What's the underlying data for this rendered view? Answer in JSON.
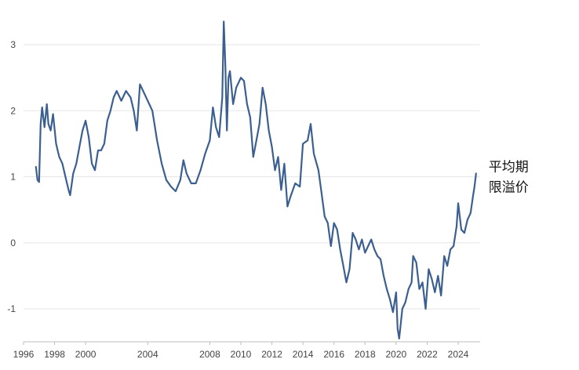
{
  "chart_data": {
    "type": "line",
    "title": "",
    "xlabel": "",
    "ylabel": "",
    "xlim": [
      1996,
      2025.2
    ],
    "ylim": [
      -1.5,
      3.5
    ],
    "grid": true,
    "x_ticks": [
      {
        "value": 1996,
        "label": "1996"
      },
      {
        "value": 1998,
        "label": "1998"
      },
      {
        "value": 2000,
        "label": "2000"
      },
      {
        "value": 2004,
        "label": "2004"
      },
      {
        "value": 2008,
        "label": "2008"
      },
      {
        "value": 2010,
        "label": "2010"
      },
      {
        "value": 2012,
        "label": "2012"
      },
      {
        "value": 2014,
        "label": "2014"
      },
      {
        "value": 2016,
        "label": "2016"
      },
      {
        "value": 2018,
        "label": "2018"
      },
      {
        "value": 2020,
        "label": "2020"
      },
      {
        "value": 2022,
        "label": "2022"
      },
      {
        "value": 2024,
        "label": "2024"
      }
    ],
    "y_ticks": [
      {
        "value": 3,
        "label": "3"
      },
      {
        "value": 2,
        "label": "2"
      },
      {
        "value": 1,
        "label": "1"
      },
      {
        "value": 0,
        "label": "0"
      },
      {
        "value": -1,
        "label": "-1"
      }
    ],
    "series": [
      {
        "name": "平均期限溢价",
        "color": "#3c5f91",
        "label_lines": [
          "平均期",
          "限溢价"
        ],
        "points": [
          [
            1996.8,
            1.15
          ],
          [
            1996.9,
            0.95
          ],
          [
            1997.0,
            0.92
          ],
          [
            1997.1,
            1.8
          ],
          [
            1997.2,
            2.05
          ],
          [
            1997.35,
            1.75
          ],
          [
            1997.5,
            2.1
          ],
          [
            1997.6,
            1.8
          ],
          [
            1997.75,
            1.7
          ],
          [
            1997.9,
            1.95
          ],
          [
            1998.1,
            1.5
          ],
          [
            1998.3,
            1.3
          ],
          [
            1998.5,
            1.2
          ],
          [
            1998.7,
            1.0
          ],
          [
            1998.9,
            0.8
          ],
          [
            1999.0,
            0.72
          ],
          [
            1999.2,
            1.05
          ],
          [
            1999.4,
            1.2
          ],
          [
            1999.6,
            1.45
          ],
          [
            1999.8,
            1.7
          ],
          [
            2000.0,
            1.85
          ],
          [
            2000.2,
            1.6
          ],
          [
            2000.4,
            1.2
          ],
          [
            2000.6,
            1.1
          ],
          [
            2000.8,
            1.4
          ],
          [
            2001.0,
            1.4
          ],
          [
            2001.2,
            1.5
          ],
          [
            2001.4,
            1.85
          ],
          [
            2001.6,
            2.0
          ],
          [
            2001.8,
            2.2
          ],
          [
            2002.0,
            2.3
          ],
          [
            2002.3,
            2.15
          ],
          [
            2002.6,
            2.3
          ],
          [
            2002.9,
            2.2
          ],
          [
            2003.1,
            2.0
          ],
          [
            2003.3,
            1.7
          ],
          [
            2003.5,
            2.4
          ],
          [
            2003.7,
            2.3
          ],
          [
            2004.0,
            2.15
          ],
          [
            2004.3,
            2.0
          ],
          [
            2004.6,
            1.55
          ],
          [
            2004.9,
            1.2
          ],
          [
            2005.2,
            0.95
          ],
          [
            2005.5,
            0.85
          ],
          [
            2005.8,
            0.78
          ],
          [
            2006.1,
            0.95
          ],
          [
            2006.3,
            1.25
          ],
          [
            2006.5,
            1.05
          ],
          [
            2006.8,
            0.9
          ],
          [
            2007.1,
            0.9
          ],
          [
            2007.4,
            1.1
          ],
          [
            2007.7,
            1.35
          ],
          [
            2008.0,
            1.55
          ],
          [
            2008.2,
            2.05
          ],
          [
            2008.4,
            1.75
          ],
          [
            2008.6,
            1.6
          ],
          [
            2008.8,
            2.2
          ],
          [
            2008.9,
            3.35
          ],
          [
            2009.0,
            2.7
          ],
          [
            2009.1,
            1.7
          ],
          [
            2009.2,
            2.5
          ],
          [
            2009.3,
            2.6
          ],
          [
            2009.5,
            2.1
          ],
          [
            2009.7,
            2.35
          ],
          [
            2010.0,
            2.5
          ],
          [
            2010.2,
            2.45
          ],
          [
            2010.4,
            2.1
          ],
          [
            2010.6,
            1.9
          ],
          [
            2010.8,
            1.3
          ],
          [
            2011.0,
            1.55
          ],
          [
            2011.2,
            1.8
          ],
          [
            2011.4,
            2.35
          ],
          [
            2011.6,
            2.1
          ],
          [
            2011.8,
            1.7
          ],
          [
            2012.0,
            1.45
          ],
          [
            2012.2,
            1.1
          ],
          [
            2012.4,
            1.3
          ],
          [
            2012.6,
            0.8
          ],
          [
            2012.8,
            1.2
          ],
          [
            2013.0,
            0.55
          ],
          [
            2013.2,
            0.7
          ],
          [
            2013.5,
            0.9
          ],
          [
            2013.8,
            0.85
          ],
          [
            2014.0,
            1.5
          ],
          [
            2014.3,
            1.55
          ],
          [
            2014.5,
            1.8
          ],
          [
            2014.7,
            1.35
          ],
          [
            2015.0,
            1.1
          ],
          [
            2015.2,
            0.75
          ],
          [
            2015.4,
            0.4
          ],
          [
            2015.6,
            0.3
          ],
          [
            2015.8,
            -0.05
          ],
          [
            2016.0,
            0.3
          ],
          [
            2016.2,
            0.2
          ],
          [
            2016.4,
            -0.1
          ],
          [
            2016.6,
            -0.35
          ],
          [
            2016.8,
            -0.6
          ],
          [
            2017.0,
            -0.4
          ],
          [
            2017.2,
            0.15
          ],
          [
            2017.4,
            0.05
          ],
          [
            2017.6,
            -0.1
          ],
          [
            2017.8,
            0.05
          ],
          [
            2018.0,
            -0.15
          ],
          [
            2018.2,
            -0.05
          ],
          [
            2018.4,
            0.05
          ],
          [
            2018.6,
            -0.1
          ],
          [
            2018.8,
            -0.2
          ],
          [
            2019.0,
            -0.25
          ],
          [
            2019.2,
            -0.5
          ],
          [
            2019.4,
            -0.7
          ],
          [
            2019.6,
            -0.85
          ],
          [
            2019.8,
            -1.05
          ],
          [
            2020.0,
            -0.75
          ],
          [
            2020.1,
            -1.3
          ],
          [
            2020.2,
            -1.45
          ],
          [
            2020.4,
            -1.0
          ],
          [
            2020.6,
            -0.9
          ],
          [
            2020.8,
            -0.7
          ],
          [
            2021.0,
            -0.6
          ],
          [
            2021.1,
            -0.2
          ],
          [
            2021.3,
            -0.3
          ],
          [
            2021.5,
            -0.7
          ],
          [
            2021.7,
            -0.6
          ],
          [
            2021.9,
            -1.0
          ],
          [
            2022.1,
            -0.4
          ],
          [
            2022.3,
            -0.55
          ],
          [
            2022.5,
            -0.75
          ],
          [
            2022.7,
            -0.5
          ],
          [
            2022.9,
            -0.8
          ],
          [
            2023.1,
            -0.2
          ],
          [
            2023.3,
            -0.35
          ],
          [
            2023.5,
            -0.1
          ],
          [
            2023.7,
            -0.05
          ],
          [
            2023.9,
            0.25
          ],
          [
            2024.0,
            0.6
          ],
          [
            2024.2,
            0.2
          ],
          [
            2024.4,
            0.15
          ],
          [
            2024.6,
            0.35
          ],
          [
            2024.8,
            0.45
          ],
          [
            2024.95,
            0.7
          ],
          [
            2025.05,
            0.85
          ],
          [
            2025.15,
            1.05
          ]
        ]
      }
    ]
  }
}
